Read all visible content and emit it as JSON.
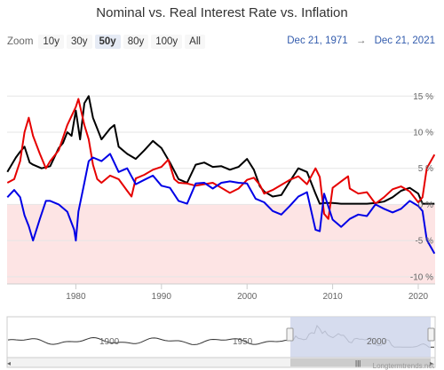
{
  "title": "Nominal vs. Real Interest Rate vs. Inflation",
  "zoom": {
    "label": "Zoom",
    "buttons": [
      "10y",
      "30y",
      "50y",
      "80y",
      "100y",
      "All"
    ],
    "active": "50y"
  },
  "range": {
    "from": "Dec 21, 1971",
    "arrow": "→",
    "to": "Dec 21, 2021"
  },
  "credit": "Longtermtrends.net",
  "colors": {
    "nominal": "#000000",
    "inflation": "#e60000",
    "real": "#0000e6",
    "negative_band": "#fde4e4",
    "navigator_mask": "#cfd6eb"
  },
  "chart_data": {
    "type": "line",
    "title": "Nominal vs. Real Interest Rate vs. Inflation",
    "xlim": [
      1971.97,
      2021.97
    ],
    "ylim": [
      -11,
      17
    ],
    "y_ticks": [
      15,
      10,
      5,
      0,
      -5,
      -10
    ],
    "y_tick_labels": [
      "15 %",
      "10 %",
      "5 %",
      "0 %",
      "-5 %",
      "-10 %"
    ],
    "x_ticks": [
      1980,
      1990,
      2000,
      2010,
      2020
    ],
    "x_tick_labels": [
      "1980",
      "1990",
      "2000",
      "2010",
      "2020"
    ],
    "negative_shading": true,
    "series": [
      {
        "color": "#000000",
        "x": [
          1972,
          1973,
          1973.5,
          1974,
          1974.6,
          1975,
          1976,
          1977,
          1978,
          1978.5,
          1979,
          1979.5,
          1980,
          1980.5,
          1981,
          1981.5,
          1982,
          1982.5,
          1983,
          1984,
          1984.5,
          1985,
          1986,
          1987,
          1988,
          1989,
          1990,
          1991,
          1992,
          1993,
          1994,
          1995,
          1996,
          1997,
          1998,
          1999,
          2000,
          2000.8,
          2001.5,
          2002,
          2003,
          2004,
          2005,
          2006,
          2007,
          2008,
          2008.5,
          2009,
          2010,
          2011,
          2012,
          2013,
          2014,
          2015,
          2016,
          2017,
          2018,
          2019,
          2020,
          2020.5,
          2021,
          2021.9
        ],
        "y": [
          4.5,
          6.5,
          7.3,
          8.0,
          5.8,
          5.5,
          5.0,
          5.3,
          7.8,
          8.5,
          10.0,
          9.5,
          13.0,
          9.0,
          14.0,
          15.0,
          12.0,
          10.5,
          9.0,
          10.5,
          11.0,
          8.0,
          7.0,
          6.3,
          7.5,
          8.8,
          7.8,
          5.8,
          3.5,
          3.0,
          5.5,
          5.8,
          5.2,
          5.3,
          4.8,
          5.2,
          6.3,
          4.8,
          2.5,
          1.8,
          1.1,
          1.3,
          3.2,
          5.0,
          4.5,
          1.5,
          0.1,
          0.2,
          0.2,
          0.1,
          0.1,
          0.1,
          0.1,
          0.2,
          0.4,
          1.0,
          1.9,
          2.3,
          1.5,
          0.1,
          0.1,
          0.1
        ]
      },
      {
        "color": "#e60000",
        "x": [
          1972,
          1972.8,
          1973.5,
          1974,
          1974.5,
          1975,
          1975.8,
          1976.5,
          1977,
          1978,
          1979,
          1980,
          1980.3,
          1981,
          1981.5,
          1982,
          1982.5,
          1983,
          1984,
          1985,
          1986,
          1986.5,
          1987,
          1988,
          1989,
          1990,
          1990.8,
          1991.5,
          1992,
          1993,
          1994,
          1995,
          1996,
          1997,
          1998,
          1999,
          2000,
          2000.8,
          2001.5,
          2002,
          2003,
          2004,
          2005,
          2006,
          2007,
          2008,
          2008.5,
          2009,
          2009.5,
          2010,
          2011,
          2011.8,
          2012,
          2013,
          2014,
          2015,
          2016,
          2017,
          2018,
          2019,
          2020,
          2020.5,
          2021,
          2021.9
        ],
        "y": [
          3.0,
          3.5,
          6.0,
          10.0,
          12.0,
          9.5,
          7.0,
          5.0,
          6.0,
          7.5,
          11.0,
          13.5,
          14.6,
          11.0,
          9.0,
          5.5,
          3.5,
          3.0,
          4.0,
          3.5,
          1.9,
          1.1,
          3.6,
          4.1,
          4.8,
          5.2,
          6.2,
          3.5,
          3.0,
          2.9,
          2.6,
          2.8,
          3.0,
          2.3,
          1.6,
          2.2,
          3.4,
          3.7,
          2.7,
          1.5,
          2.0,
          2.7,
          3.4,
          3.9,
          2.8,
          5.0,
          3.8,
          -1.3,
          -2.0,
          2.3,
          3.2,
          3.9,
          2.2,
          1.5,
          1.7,
          0.1,
          1.0,
          2.1,
          2.5,
          1.8,
          0.3,
          1.0,
          5.0,
          6.9
        ]
      },
      {
        "color": "#0000e6",
        "x": [
          1972,
          1972.8,
          1973.5,
          1974,
          1974.5,
          1975,
          1975.8,
          1976.5,
          1977,
          1978,
          1979,
          1979.8,
          1980,
          1980.3,
          1981,
          1981.5,
          1982,
          1983,
          1984,
          1985,
          1986,
          1987,
          1988,
          1989,
          1990,
          1991,
          1992,
          1993,
          1994,
          1995,
          1996,
          1997,
          1998,
          1999,
          2000,
          2001,
          2002,
          2003,
          2004,
          2005,
          2006,
          2007,
          2008,
          2008.5,
          2009,
          2010,
          2011,
          2012,
          2013,
          2014,
          2015,
          2016,
          2017,
          2018,
          2019,
          2020,
          2020.5,
          2021,
          2021.9
        ],
        "y": [
          1.0,
          2.0,
          1.0,
          -1.5,
          -3.0,
          -5.0,
          -2.0,
          0.5,
          0.5,
          0.0,
          -1.0,
          -3.5,
          -5.0,
          -1.0,
          3.0,
          6.0,
          6.5,
          6.0,
          7.0,
          4.5,
          5.0,
          2.8,
          3.4,
          4.0,
          2.6,
          2.3,
          0.5,
          0.1,
          2.9,
          3.0,
          2.2,
          3.0,
          3.2,
          3.0,
          2.9,
          0.8,
          0.3,
          -0.9,
          -1.4,
          -0.2,
          1.1,
          1.7,
          -3.5,
          -3.7,
          1.5,
          -2.1,
          -3.1,
          -2.0,
          -1.4,
          -1.6,
          0.0,
          -0.6,
          -1.1,
          -0.6,
          0.5,
          -0.2,
          -0.9,
          -4.9,
          -6.8
        ]
      }
    ],
    "navigator": {
      "x_tick_labels": [
        "1900",
        "1950",
        "2000"
      ]
    }
  }
}
